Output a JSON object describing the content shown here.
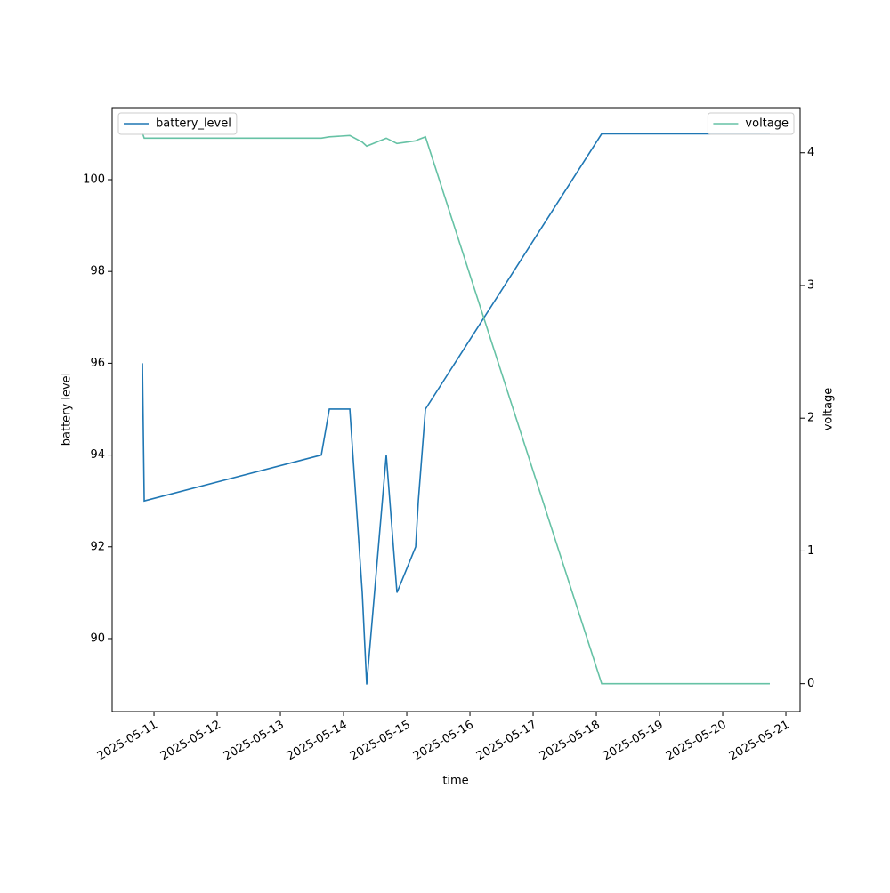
{
  "chart_data": {
    "type": "line",
    "x_label": "time",
    "y_label": "battery level",
    "y2_label": "voltage",
    "x": [
      "2025-05-10T19:36",
      "2025-05-10T20:17",
      "2025-05-13T15:33",
      "2025-05-13T18:36",
      "2025-05-14T02:22",
      "2025-05-14T07:06",
      "2025-05-14T08:47",
      "2025-05-14T16:13",
      "2025-05-14T20:17",
      "2025-05-15T03:23",
      "2025-05-15T04:24",
      "2025-05-15T07:06",
      "2025-05-18T02:02",
      "2025-05-20T17:54"
    ],
    "series": [
      {
        "name": "battery_level",
        "color": "#1f77b4",
        "axis": "y",
        "legend": "upper left",
        "values": [
          96,
          93,
          94,
          95,
          95,
          91,
          89,
          94,
          91,
          92,
          93,
          95,
          101,
          101
        ]
      },
      {
        "name": "voltage",
        "color": "#66c2a5",
        "axis": "y2",
        "legend": "upper right",
        "values": [
          4.15,
          4.11,
          4.11,
          4.12,
          4.13,
          4.08,
          4.05,
          4.11,
          4.07,
          4.09,
          4.1,
          4.12,
          0,
          0
        ]
      }
    ],
    "xlim": [
      "2025-05-10T08:06",
      "2025-05-21T05:24"
    ],
    "xticks": [
      "2025-05-11",
      "2025-05-12",
      "2025-05-13",
      "2025-05-14",
      "2025-05-15",
      "2025-05-16",
      "2025-05-17",
      "2025-05-18",
      "2025-05-19",
      "2025-05-20",
      "2025-05-21"
    ],
    "ylim": [
      88.41,
      101.57
    ],
    "yticks": [
      90,
      92,
      94,
      96,
      98,
      100
    ],
    "y2lim": [
      -0.21,
      4.34
    ],
    "y2ticks": [
      0,
      1,
      2,
      3,
      4
    ],
    "grid": false
  }
}
